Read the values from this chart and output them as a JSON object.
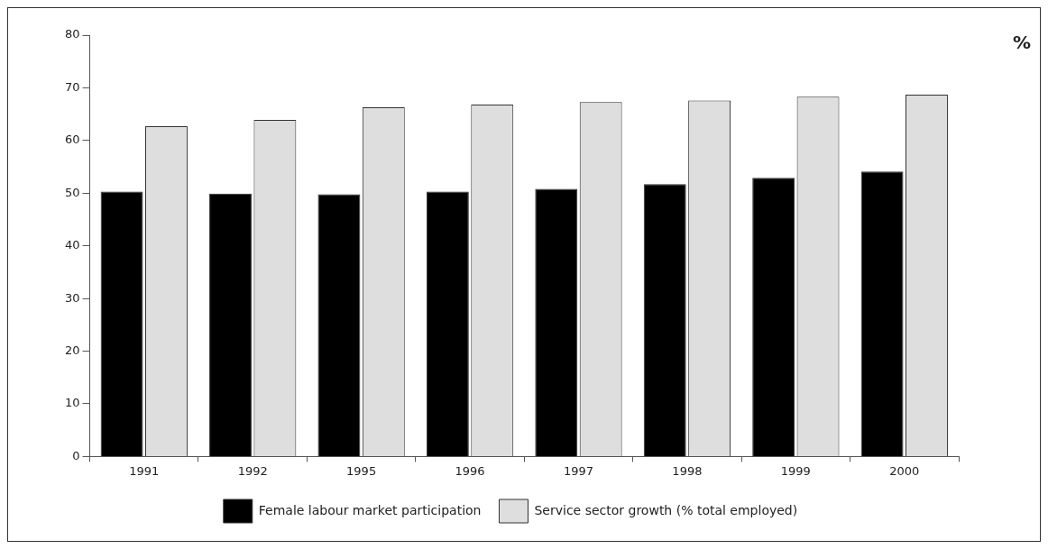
{
  "chart_data": {
    "type": "bar",
    "ylabel": "%",
    "categories": [
      "1991",
      "1992",
      "1995",
      "1996",
      "1997",
      "1998",
      "1999",
      "2000"
    ],
    "series": [
      {
        "name": "Female labour market participation",
        "color": "#000000",
        "values": [
          50.3,
          49.9,
          49.8,
          50.3,
          50.8,
          51.7,
          52.9,
          54.1
        ]
      },
      {
        "name": "Service sector growth (% total employed)",
        "color": "#dedede",
        "values": [
          62.7,
          63.9,
          66.3,
          66.8,
          67.3,
          67.6,
          68.3,
          68.7
        ]
      }
    ],
    "ylim": [
      0,
      80
    ],
    "yticks": [
      0,
      10,
      20,
      30,
      40,
      50,
      60,
      70,
      80
    ],
    "grid": false,
    "legend": "bottom"
  }
}
